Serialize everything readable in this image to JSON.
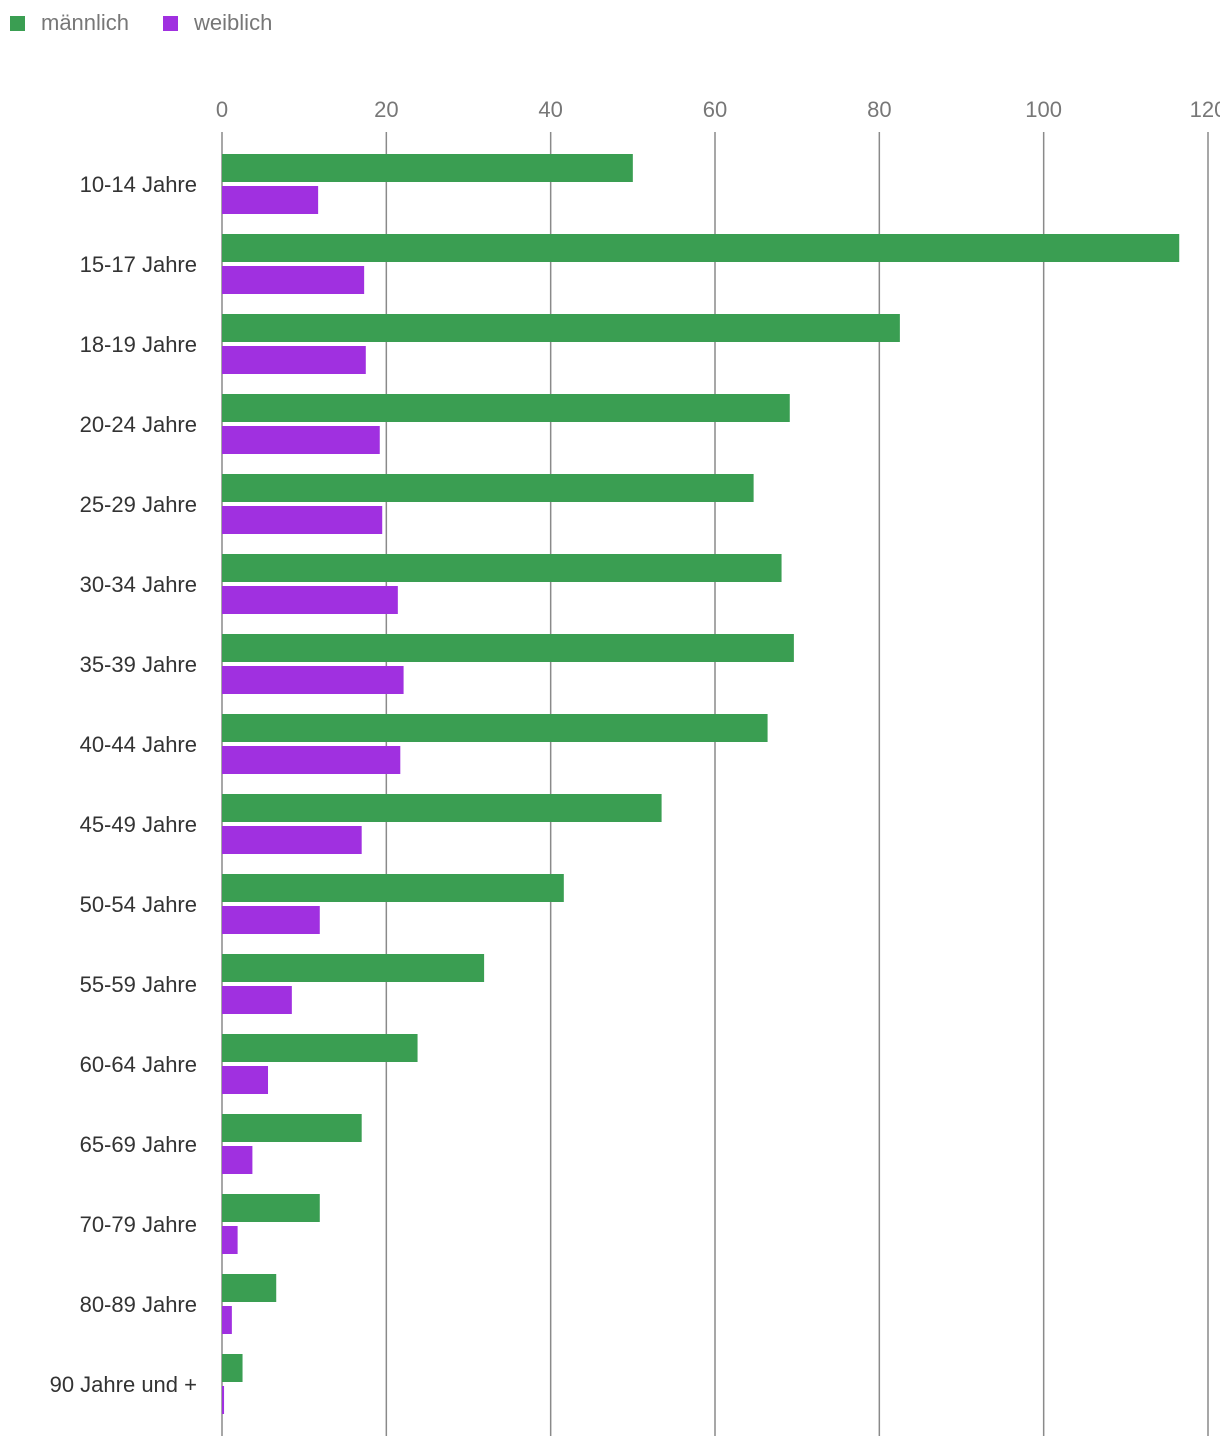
{
  "chart_data": {
    "type": "bar",
    "orientation": "horizontal",
    "title": "",
    "xlabel": "",
    "ylabel": "",
    "xlim": [
      0,
      120
    ],
    "x_ticks": [
      "0",
      "20",
      "40",
      "60",
      "80",
      "100",
      "120"
    ],
    "grid": true,
    "legend_position": "top-left",
    "categories": [
      "10-14 Jahre",
      "15-17 Jahre",
      "18-19 Jahre",
      "20-24 Jahre",
      "25-29 Jahre",
      "30-34 Jahre",
      "35-39 Jahre",
      "40-44 Jahre",
      "45-49 Jahre",
      "50-54 Jahre",
      "55-59 Jahre",
      "60-64 Jahre",
      "65-69 Jahre",
      "70-79 Jahre",
      "80-89 Jahre",
      "90 Jahre und +"
    ],
    "series": [
      {
        "name": "männlich",
        "color": "#3a9e52",
        "values": [
          50.0,
          116.5,
          82.5,
          69.1,
          64.7,
          68.1,
          69.6,
          66.4,
          53.5,
          41.6,
          31.9,
          23.8,
          17.0,
          11.9,
          6.6,
          2.5
        ]
      },
      {
        "name": "weiblich",
        "color": "#a030e0",
        "values": [
          11.7,
          17.3,
          17.5,
          19.2,
          19.5,
          21.4,
          22.1,
          21.7,
          17.0,
          11.9,
          8.5,
          5.6,
          3.7,
          1.9,
          1.2,
          0.25
        ]
      }
    ]
  }
}
